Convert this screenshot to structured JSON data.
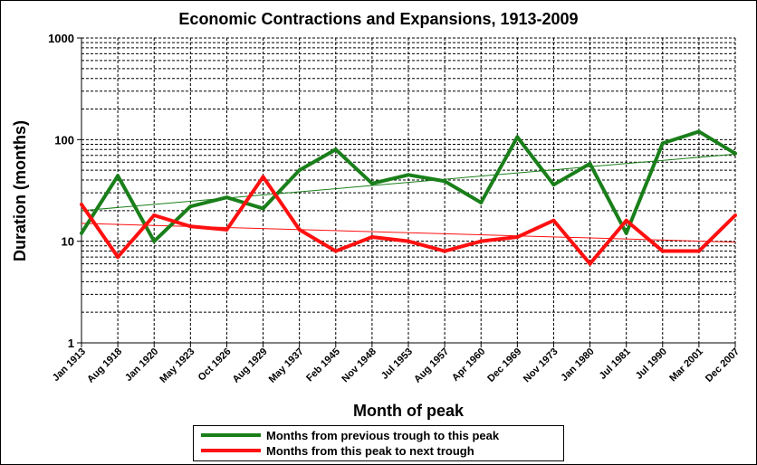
{
  "chart_data": {
    "type": "line",
    "title": "Economic Contractions and Expansions, 1913-2009",
    "xlabel": "Month of peak",
    "ylabel": "Duration (months)",
    "yscale": "log",
    "ylim": [
      1,
      1000
    ],
    "yticks": [
      "1",
      "10",
      "100",
      "1000"
    ],
    "grid": true,
    "legend_position": "bottom",
    "categories": [
      "Jan 1913",
      "Aug 1918",
      "Jan 1920",
      "May 1923",
      "Oct 1926",
      "Aug 1929",
      "May 1937",
      "Feb 1945",
      "Nov 1948",
      "Jul 1953",
      "Aug 1957",
      "Apr 1960",
      "Dec 1969",
      "Nov 1973",
      "Jan 1980",
      "Jul 1981",
      "Jul 1990",
      "Mar 2001",
      "Dec 2007"
    ],
    "series": [
      {
        "name": "Months from previous trough to this peak",
        "color": "#1a7f1a",
        "values": [
          12,
          44,
          10,
          22,
          27,
          21,
          50,
          80,
          37,
          45,
          39,
          24,
          106,
          36,
          58,
          12,
          92,
          120,
          73
        ],
        "trendline": {
          "type": "exponential",
          "start": 20,
          "end": 72
        }
      },
      {
        "name": "Months from this peak to next trough",
        "color": "#ff1010",
        "values": [
          23,
          7,
          18,
          14,
          13,
          43,
          13,
          8,
          11,
          10,
          8,
          10,
          11,
          16,
          6,
          16,
          8,
          8,
          18
        ],
        "trendline": {
          "type": "exponential",
          "start": 15,
          "end": 9.8
        }
      }
    ]
  }
}
